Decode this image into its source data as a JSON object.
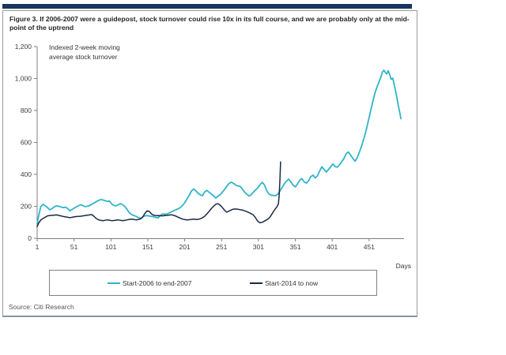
{
  "figure": {
    "title_line1": "Figure 3. If 2006-2007 were a guidepost, stock turnover could rise 10x in its full course, and we are probably only at the mid-",
    "title_line2": "point of the uptrend",
    "source": "Source: Citi Research"
  },
  "chart_notes": {
    "line1": "Indexed 2-week moving",
    "line2": "average stock turnover"
  },
  "colors": {
    "accent_bar": "#17365d",
    "series_2006": "#2fb4c9",
    "series_2014": "#1b2944"
  },
  "chart_data": {
    "type": "line",
    "title": "Indexed 2-week moving average stock turnover",
    "xlabel": "Days",
    "ylabel": "",
    "x_axis": {
      "label": "Days",
      "range": [
        1,
        500
      ]
    },
    "y_axis": {
      "label": "Indexed 2-week moving average stock turnover",
      "range": [
        0,
        1200
      ]
    },
    "grid": false,
    "legend_position": "bottom-box",
    "y_ticks": [
      {
        "value": 0,
        "label": "0"
      },
      {
        "value": 200,
        "label": "200"
      },
      {
        "value": 400,
        "label": "400"
      },
      {
        "value": 600,
        "label": "600"
      },
      {
        "value": 800,
        "label": "800"
      },
      {
        "value": 1000,
        "label": "1,000"
      },
      {
        "value": 1200,
        "label": "1,200"
      }
    ],
    "x_ticks": [
      {
        "value": 1,
        "label": "1"
      },
      {
        "value": 51,
        "label": "51"
      },
      {
        "value": 101,
        "label": "101"
      },
      {
        "value": 151,
        "label": "151"
      },
      {
        "value": 201,
        "label": "201"
      },
      {
        "value": 251,
        "label": "251"
      },
      {
        "value": 301,
        "label": "301"
      },
      {
        "value": 351,
        "label": "351"
      },
      {
        "value": 401,
        "label": "401"
      },
      {
        "value": 451,
        "label": "451"
      }
    ],
    "series": [
      {
        "name": "Start-2006 to end-2007",
        "color": "#2fb4c9",
        "stroke_width": 1.8,
        "points": [
          [
            1,
            90
          ],
          [
            3,
            140
          ],
          [
            6,
            200
          ],
          [
            9,
            212
          ],
          [
            12,
            203
          ],
          [
            15,
            192
          ],
          [
            18,
            178
          ],
          [
            21,
            185
          ],
          [
            24,
            196
          ],
          [
            27,
            203
          ],
          [
            30,
            200
          ],
          [
            33,
            196
          ],
          [
            36,
            192
          ],
          [
            39,
            194
          ],
          [
            42,
            188
          ],
          [
            45,
            172
          ],
          [
            48,
            180
          ],
          [
            51,
            188
          ],
          [
            54,
            196
          ],
          [
            57,
            203
          ],
          [
            60,
            210
          ],
          [
            63,
            205
          ],
          [
            66,
            198
          ],
          [
            69,
            200
          ],
          [
            72,
            204
          ],
          [
            75,
            213
          ],
          [
            78,
            220
          ],
          [
            81,
            228
          ],
          [
            84,
            236
          ],
          [
            87,
            242
          ],
          [
            90,
            240
          ],
          [
            93,
            235
          ],
          [
            96,
            230
          ],
          [
            99,
            233
          ],
          [
            102,
            215
          ],
          [
            105,
            205
          ],
          [
            108,
            203
          ],
          [
            111,
            210
          ],
          [
            114,
            217
          ],
          [
            117,
            210
          ],
          [
            120,
            198
          ],
          [
            123,
            180
          ],
          [
            126,
            160
          ],
          [
            129,
            148
          ],
          [
            132,
            142
          ],
          [
            135,
            138
          ],
          [
            138,
            130
          ],
          [
            141,
            125
          ],
          [
            144,
            133
          ],
          [
            147,
            140
          ],
          [
            150,
            142
          ],
          [
            153,
            139
          ],
          [
            156,
            137
          ],
          [
            159,
            134
          ],
          [
            162,
            130
          ],
          [
            165,
            128
          ],
          [
            168,
            142
          ],
          [
            171,
            152
          ],
          [
            174,
            150
          ],
          [
            177,
            152
          ],
          [
            180,
            158
          ],
          [
            183,
            165
          ],
          [
            186,
            172
          ],
          [
            189,
            178
          ],
          [
            192,
            184
          ],
          [
            195,
            192
          ],
          [
            198,
            205
          ],
          [
            201,
            222
          ],
          [
            204,
            245
          ],
          [
            207,
            268
          ],
          [
            210,
            295
          ],
          [
            213,
            308
          ],
          [
            216,
            298
          ],
          [
            219,
            282
          ],
          [
            222,
            272
          ],
          [
            225,
            266
          ],
          [
            228,
            290
          ],
          [
            231,
            300
          ],
          [
            234,
            288
          ],
          [
            237,
            278
          ],
          [
            240,
            265
          ],
          [
            243,
            252
          ],
          [
            246,
            262
          ],
          [
            249,
            272
          ],
          [
            252,
            288
          ],
          [
            255,
            305
          ],
          [
            258,
            325
          ],
          [
            261,
            342
          ],
          [
            264,
            351
          ],
          [
            267,
            344
          ],
          [
            270,
            333
          ],
          [
            273,
            328
          ],
          [
            276,
            325
          ],
          [
            279,
            310
          ],
          [
            282,
            290
          ],
          [
            285,
            277
          ],
          [
            288,
            264
          ],
          [
            291,
            272
          ],
          [
            294,
            288
          ],
          [
            297,
            302
          ],
          [
            300,
            315
          ],
          [
            303,
            335
          ],
          [
            306,
            350
          ],
          [
            309,
            335
          ],
          [
            312,
            300
          ],
          [
            315,
            278
          ],
          [
            318,
            270
          ],
          [
            321,
            268
          ],
          [
            324,
            266
          ],
          [
            327,
            275
          ],
          [
            330,
            295
          ],
          [
            333,
            318
          ],
          [
            336,
            340
          ],
          [
            339,
            358
          ],
          [
            342,
            370
          ],
          [
            345,
            352
          ],
          [
            348,
            332
          ],
          [
            351,
            322
          ],
          [
            354,
            340
          ],
          [
            357,
            362
          ],
          [
            360,
            374
          ],
          [
            363,
            352
          ],
          [
            366,
            345
          ],
          [
            369,
            360
          ],
          [
            372,
            385
          ],
          [
            375,
            395
          ],
          [
            378,
            378
          ],
          [
            381,
            390
          ],
          [
            384,
            420
          ],
          [
            387,
            448
          ],
          [
            390,
            430
          ],
          [
            393,
            415
          ],
          [
            396,
            430
          ],
          [
            399,
            448
          ],
          [
            402,
            465
          ],
          [
            405,
            448
          ],
          [
            408,
            445
          ],
          [
            411,
            460
          ],
          [
            414,
            480
          ],
          [
            417,
            500
          ],
          [
            420,
            530
          ],
          [
            423,
            540
          ],
          [
            426,
            520
          ],
          [
            429,
            500
          ],
          [
            432,
            482
          ],
          [
            435,
            505
          ],
          [
            438,
            540
          ],
          [
            441,
            580
          ],
          [
            444,
            625
          ],
          [
            447,
            675
          ],
          [
            450,
            735
          ],
          [
            453,
            795
          ],
          [
            456,
            855
          ],
          [
            459,
            910
          ],
          [
            462,
            950
          ],
          [
            465,
            985
          ],
          [
            467,
            1010
          ],
          [
            469,
            1040
          ],
          [
            471,
            1052
          ],
          [
            473,
            1038
          ],
          [
            475,
            1028
          ],
          [
            477,
            1048
          ],
          [
            479,
            1022
          ],
          [
            481,
            995
          ],
          [
            483,
            1002
          ],
          [
            485,
            962
          ],
          [
            487,
            920
          ],
          [
            489,
            872
          ],
          [
            491,
            820
          ],
          [
            493,
            778
          ],
          [
            494,
            748
          ]
        ]
      },
      {
        "name": "Start-2014 to now",
        "color": "#1b2944",
        "stroke_width": 1.5,
        "points": [
          [
            1,
            72
          ],
          [
            3,
            95
          ],
          [
            6,
            115
          ],
          [
            9,
            124
          ],
          [
            12,
            132
          ],
          [
            15,
            140
          ],
          [
            18,
            142
          ],
          [
            21,
            143
          ],
          [
            24,
            144
          ],
          [
            27,
            146
          ],
          [
            30,
            143
          ],
          [
            33,
            140
          ],
          [
            36,
            137
          ],
          [
            39,
            134
          ],
          [
            42,
            132
          ],
          [
            45,
            129
          ],
          [
            48,
            131
          ],
          [
            51,
            134
          ],
          [
            54,
            136
          ],
          [
            57,
            137
          ],
          [
            60,
            138
          ],
          [
            63,
            140
          ],
          [
            66,
            142
          ],
          [
            69,
            144
          ],
          [
            72,
            146
          ],
          [
            75,
            148
          ],
          [
            78,
            138
          ],
          [
            81,
            124
          ],
          [
            84,
            116
          ],
          [
            87,
            112
          ],
          [
            90,
            110
          ],
          [
            93,
            112
          ],
          [
            96,
            115
          ],
          [
            99,
            113
          ],
          [
            102,
            110
          ],
          [
            105,
            111
          ],
          [
            108,
            113
          ],
          [
            111,
            115
          ],
          [
            114,
            112
          ],
          [
            117,
            110
          ],
          [
            120,
            112
          ],
          [
            123,
            115
          ],
          [
            126,
            118
          ],
          [
            129,
            120
          ],
          [
            132,
            118
          ],
          [
            135,
            115
          ],
          [
            138,
            117
          ],
          [
            141,
            121
          ],
          [
            144,
            132
          ],
          [
            147,
            155
          ],
          [
            150,
            172
          ],
          [
            153,
            168
          ],
          [
            156,
            152
          ],
          [
            159,
            144
          ],
          [
            162,
            141
          ],
          [
            165,
            142
          ],
          [
            168,
            141
          ],
          [
            171,
            140
          ],
          [
            174,
            142
          ],
          [
            177,
            143
          ],
          [
            180,
            145
          ],
          [
            183,
            147
          ],
          [
            186,
            143
          ],
          [
            189,
            139
          ],
          [
            192,
            132
          ],
          [
            195,
            126
          ],
          [
            198,
            120
          ],
          [
            201,
            117
          ],
          [
            204,
            115
          ],
          [
            207,
            116
          ],
          [
            210,
            118
          ],
          [
            213,
            120
          ],
          [
            216,
            118
          ],
          [
            219,
            118
          ],
          [
            222,
            122
          ],
          [
            225,
            128
          ],
          [
            228,
            138
          ],
          [
            231,
            152
          ],
          [
            234,
            168
          ],
          [
            237,
            185
          ],
          [
            240,
            200
          ],
          [
            243,
            212
          ],
          [
            246,
            217
          ],
          [
            249,
            208
          ],
          [
            252,
            192
          ],
          [
            255,
            176
          ],
          [
            258,
            163
          ],
          [
            261,
            170
          ],
          [
            264,
            177
          ],
          [
            267,
            182
          ],
          [
            270,
            183
          ],
          [
            273,
            181
          ],
          [
            276,
            179
          ],
          [
            279,
            177
          ],
          [
            282,
            172
          ],
          [
            285,
            167
          ],
          [
            288,
            161
          ],
          [
            291,
            154
          ],
          [
            294,
            146
          ],
          [
            297,
            128
          ],
          [
            300,
            106
          ],
          [
            303,
            97
          ],
          [
            306,
            100
          ],
          [
            309,
            107
          ],
          [
            312,
            115
          ],
          [
            315,
            124
          ],
          [
            318,
            142
          ],
          [
            321,
            165
          ],
          [
            324,
            185
          ],
          [
            326,
            196
          ],
          [
            328,
            215
          ],
          [
            329,
            260
          ],
          [
            330,
            360
          ],
          [
            331,
            478
          ]
        ]
      }
    ]
  }
}
